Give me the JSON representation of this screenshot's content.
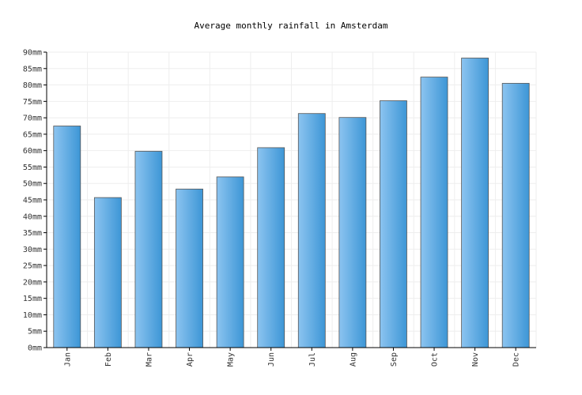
{
  "chart_data": {
    "type": "bar",
    "title": "Average monthly rainfall in Amsterdam",
    "categories": [
      "Jan",
      "Feb",
      "Mar",
      "Apr",
      "May",
      "Jun",
      "Jul",
      "Aug",
      "Sep",
      "Oct",
      "Nov",
      "Dec"
    ],
    "values": [
      67.5,
      45.7,
      59.8,
      48.3,
      52.0,
      60.9,
      71.3,
      70.1,
      75.2,
      82.4,
      88.2,
      80.5
    ],
    "yunit": "mm",
    "ylim": [
      0,
      90
    ],
    "ytick_step": 5,
    "grid": true,
    "colors": {
      "bar_light": "#8cc4f0",
      "bar_dark": "#3d96d6",
      "bar_stroke": "#555555",
      "grid": "#eeeeee"
    }
  }
}
